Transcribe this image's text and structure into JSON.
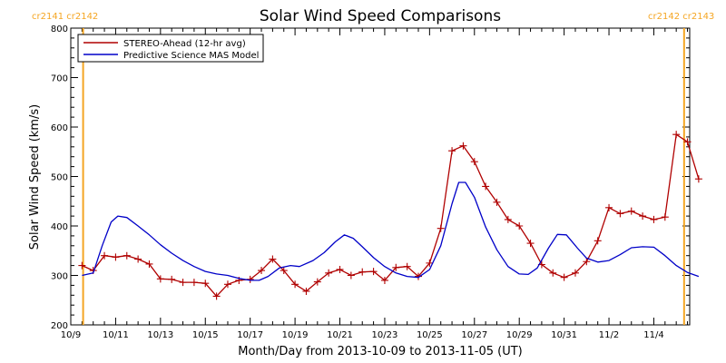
{
  "chart_data": {
    "type": "line",
    "title": "Solar Wind Speed Comparisons",
    "xlabel": "Month/Day from 2013-10-09 to 2013-11-05 (UT)",
    "ylabel": "Solar Wind Speed (km/s)",
    "ylim": [
      200,
      800
    ],
    "yticks": [
      200,
      300,
      400,
      500,
      600,
      700,
      800
    ],
    "x_start_date": "2013-10-09",
    "xlim_days": [
      0,
      27.6
    ],
    "xticks": [
      {
        "day": 0,
        "label": "10/9"
      },
      {
        "day": 2,
        "label": "10/11"
      },
      {
        "day": 4,
        "label": "10/13"
      },
      {
        "day": 6,
        "label": "10/15"
      },
      {
        "day": 8,
        "label": "10/17"
      },
      {
        "day": 10,
        "label": "10/19"
      },
      {
        "day": 12,
        "label": "10/21"
      },
      {
        "day": 14,
        "label": "10/23"
      },
      {
        "day": 16,
        "label": "10/25"
      },
      {
        "day": 18,
        "label": "10/27"
      },
      {
        "day": 20,
        "label": "10/29"
      },
      {
        "day": 22,
        "label": "10/31"
      },
      {
        "day": 24,
        "label": "11/2"
      },
      {
        "day": 26,
        "label": "11/4"
      }
    ],
    "carrington_markers": [
      {
        "day": 0.55,
        "label": "cr2141 cr2142",
        "color": "#f5a623"
      },
      {
        "day": 27.35,
        "label": "cr2142 cr2143",
        "color": "#f5a623"
      }
    ],
    "legend_position": "top-left",
    "series": [
      {
        "name": "STEREO-Ahead (12-hr avg)",
        "color": "#b00000",
        "marker": "plus",
        "points": [
          [
            0.5,
            320
          ],
          [
            1.0,
            310
          ],
          [
            1.5,
            340
          ],
          [
            2.0,
            337
          ],
          [
            2.5,
            340
          ],
          [
            3.0,
            333
          ],
          [
            3.5,
            323
          ],
          [
            4.0,
            293
          ],
          [
            4.5,
            292
          ],
          [
            5.0,
            286
          ],
          [
            5.5,
            286
          ],
          [
            6.0,
            284
          ],
          [
            6.5,
            258
          ],
          [
            7.0,
            282
          ],
          [
            7.5,
            290
          ],
          [
            8.0,
            292
          ],
          [
            8.5,
            310
          ],
          [
            9.0,
            333
          ],
          [
            9.5,
            310
          ],
          [
            10.0,
            282
          ],
          [
            10.5,
            268
          ],
          [
            11.0,
            287
          ],
          [
            11.5,
            305
          ],
          [
            12.0,
            312
          ],
          [
            12.5,
            300
          ],
          [
            13.0,
            307
          ],
          [
            13.5,
            308
          ],
          [
            14.0,
            290
          ],
          [
            14.5,
            316
          ],
          [
            15.0,
            318
          ],
          [
            15.5,
            298
          ],
          [
            16.0,
            325
          ],
          [
            16.5,
            395
          ],
          [
            17.0,
            552
          ],
          [
            17.5,
            562
          ],
          [
            18.0,
            530
          ],
          [
            18.5,
            480
          ],
          [
            19.0,
            448
          ],
          [
            19.5,
            413
          ],
          [
            20.0,
            400
          ],
          [
            20.5,
            365
          ],
          [
            21.0,
            322
          ],
          [
            21.5,
            305
          ],
          [
            22.0,
            296
          ],
          [
            22.5,
            305
          ],
          [
            23.0,
            328
          ],
          [
            23.5,
            370
          ],
          [
            24.0,
            437
          ],
          [
            24.5,
            425
          ],
          [
            25.0,
            430
          ],
          [
            25.5,
            420
          ],
          [
            26.0,
            413
          ],
          [
            26.5,
            418
          ],
          [
            27.0,
            585
          ],
          [
            27.5,
            570
          ],
          [
            28.0,
            495
          ]
        ]
      },
      {
        "name": "Predictive Science MAS Model",
        "color": "#0000c8",
        "marker": "none",
        "points": [
          [
            0.5,
            300
          ],
          [
            1.0,
            305
          ],
          [
            1.4,
            360
          ],
          [
            1.8,
            408
          ],
          [
            2.1,
            420
          ],
          [
            2.5,
            417
          ],
          [
            3.0,
            400
          ],
          [
            3.5,
            382
          ],
          [
            4.0,
            362
          ],
          [
            4.5,
            345
          ],
          [
            5.0,
            330
          ],
          [
            5.5,
            318
          ],
          [
            6.0,
            308
          ],
          [
            6.5,
            303
          ],
          [
            7.0,
            300
          ],
          [
            7.5,
            294
          ],
          [
            8.0,
            290
          ],
          [
            8.4,
            290
          ],
          [
            8.8,
            298
          ],
          [
            9.3,
            315
          ],
          [
            9.8,
            320
          ],
          [
            10.2,
            318
          ],
          [
            10.8,
            330
          ],
          [
            11.3,
            346
          ],
          [
            11.8,
            368
          ],
          [
            12.2,
            382
          ],
          [
            12.6,
            375
          ],
          [
            13.0,
            358
          ],
          [
            13.5,
            336
          ],
          [
            14.0,
            318
          ],
          [
            14.5,
            305
          ],
          [
            15.0,
            298
          ],
          [
            15.5,
            296
          ],
          [
            16.0,
            312
          ],
          [
            16.5,
            360
          ],
          [
            17.0,
            445
          ],
          [
            17.3,
            488
          ],
          [
            17.6,
            488
          ],
          [
            18.0,
            458
          ],
          [
            18.5,
            398
          ],
          [
            19.0,
            352
          ],
          [
            19.5,
            318
          ],
          [
            20.0,
            303
          ],
          [
            20.4,
            302
          ],
          [
            20.8,
            315
          ],
          [
            21.3,
            355
          ],
          [
            21.7,
            383
          ],
          [
            22.1,
            382
          ],
          [
            22.6,
            355
          ],
          [
            23.0,
            335
          ],
          [
            23.5,
            327
          ],
          [
            24.0,
            330
          ],
          [
            24.5,
            342
          ],
          [
            25.0,
            356
          ],
          [
            25.5,
            358
          ],
          [
            26.0,
            357
          ],
          [
            26.5,
            340
          ],
          [
            27.0,
            320
          ],
          [
            27.5,
            306
          ],
          [
            28.0,
            298
          ]
        ]
      }
    ]
  }
}
